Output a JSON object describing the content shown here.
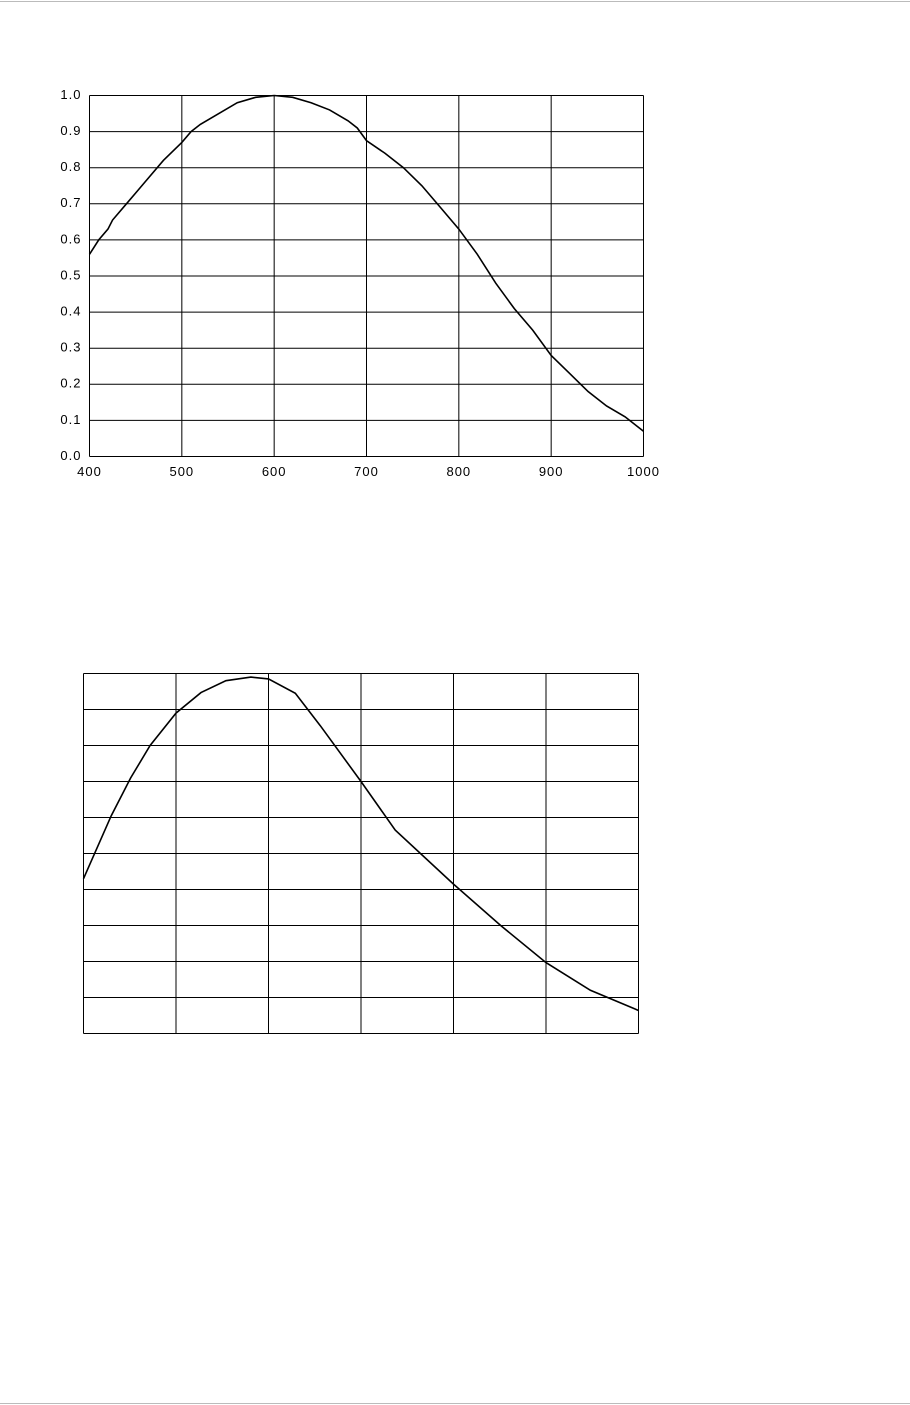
{
  "chart_data": [
    {
      "type": "line",
      "color": "#000000",
      "grid": true,
      "tick_labels": true,
      "x": [
        400,
        410,
        420,
        425,
        440,
        450,
        460,
        480,
        500,
        510,
        520,
        540,
        560,
        580,
        600,
        620,
        640,
        660,
        680,
        690,
        700,
        720,
        740,
        760,
        780,
        800,
        820,
        840,
        860,
        880,
        900,
        920,
        940,
        960,
        980,
        1000
      ],
      "values": [
        0.56,
        0.6,
        0.63,
        0.655,
        0.7,
        0.73,
        0.76,
        0.82,
        0.87,
        0.9,
        0.92,
        0.95,
        0.98,
        0.995,
        1.0,
        0.995,
        0.98,
        0.96,
        0.93,
        0.91,
        0.875,
        0.84,
        0.8,
        0.75,
        0.69,
        0.63,
        0.56,
        0.48,
        0.41,
        0.35,
        0.28,
        0.23,
        0.18,
        0.14,
        0.11,
        0.07
      ],
      "xlim": [
        400,
        1000
      ],
      "xticks": [
        400,
        500,
        600,
        700,
        800,
        900,
        1000
      ],
      "ylim": [
        0,
        1
      ],
      "yticks": [
        {
          "value": 0,
          "label": "0.0"
        },
        0.1,
        0.2,
        0.3,
        0.4,
        0.5,
        0.6,
        0.7,
        0.8,
        0.9,
        {
          "value": 1,
          "label": "1.0"
        }
      ]
    },
    {
      "type": "line",
      "color": "#000000",
      "grid": true,
      "tick_labels": false,
      "x": [
        400,
        430,
        451,
        472,
        500,
        527,
        554,
        581,
        600,
        629,
        656,
        700,
        737,
        800,
        851,
        900,
        948,
        1000
      ],
      "values": [
        0.43,
        0.605,
        0.71,
        0.8,
        0.89,
        0.947,
        0.98,
        0.99,
        0.985,
        0.945,
        0.855,
        0.7,
        0.565,
        0.415,
        0.3,
        0.197,
        0.12,
        0.064
      ],
      "xlim": [
        400,
        1000
      ],
      "xticks": [
        400,
        500,
        600,
        700,
        800,
        900,
        1000
      ],
      "ylim": [
        0,
        1
      ],
      "yticks": [
        0,
        0.1,
        0.2,
        0.3,
        0.4,
        0.5,
        0.6,
        0.7,
        0.8,
        0.9,
        1
      ]
    }
  ]
}
